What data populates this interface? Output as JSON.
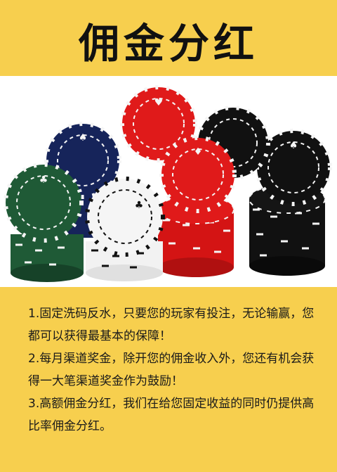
{
  "header": {
    "title": "佣金分红"
  },
  "hero": {
    "image": "poker-chips-photo",
    "colors": {
      "red": "#e01a1a",
      "black": "#111111",
      "navy": "#16245a",
      "green": "#1f5a36",
      "white": "#f5f5f5"
    }
  },
  "points": [
    "1.固定洗码反水，只要您的玩家有投注，无论输赢，您都可以获得最基本的保障！",
    "2.每月渠道奖金，除开您的佣金收入外，您还有机会获得一大笔渠道奖金作为鼓励！",
    "3.高额佣金分红，我们在给您固定收益的同时仍提供高比率佣金分红。"
  ],
  "colors": {
    "background": "#f7cf4e",
    "text": "#1a1a1a"
  }
}
